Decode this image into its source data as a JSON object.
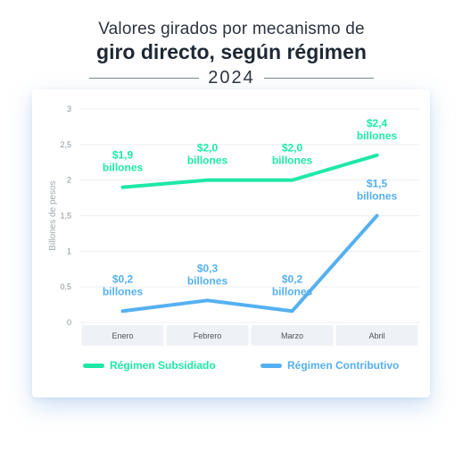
{
  "title_line1": "Valores girados por mecanismo de",
  "title_line2": "giro directo, según régimen",
  "year": "2024",
  "colors": {
    "subsidiado": "#1ee8a7",
    "contributivo": "#55b0f2",
    "axis_text": "#8a939c"
  },
  "chart_data": {
    "type": "line",
    "title": "Valores girados por mecanismo de giro directo, según régimen",
    "ylabel": "Billones de pesos",
    "xlabel": "",
    "categories": [
      "Enero",
      "Febrero",
      "Marzo",
      "Abril"
    ],
    "ylim": [
      0,
      3
    ],
    "yticks": [
      "0",
      "0,5",
      "1",
      "1,5",
      "2",
      "2,5",
      "3"
    ],
    "grid": true,
    "legend": "bottom",
    "series": [
      {
        "name": "Régimen Subsidiado",
        "values": [
          1.9,
          2.0,
          2.0,
          2.35
        ],
        "labels": [
          [
            "$1,9",
            "billones"
          ],
          [
            "$2,0",
            "billones"
          ],
          [
            "$2,0",
            "billones"
          ],
          [
            "$2,4",
            "billones"
          ]
        ]
      },
      {
        "name": "Régimen Contributivo",
        "values": [
          0.16,
          0.31,
          0.16,
          1.5
        ],
        "labels": [
          [
            "$0,2",
            "billones"
          ],
          [
            "$0,3",
            "billones"
          ],
          [
            "$0,2",
            "billones"
          ],
          [
            "$1,5",
            "billones"
          ]
        ]
      }
    ]
  }
}
